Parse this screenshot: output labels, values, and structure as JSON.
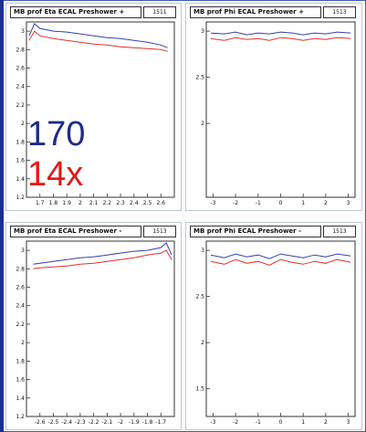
{
  "colors": {
    "series_a": "#3240b0",
    "series_b": "#e03030",
    "frame": "#333333"
  },
  "annotations": {
    "top": {
      "text": "170",
      "color": "#1f2a8a"
    },
    "bottom": {
      "text": "14x",
      "color": "#e01a1a"
    }
  },
  "chart_data": [
    {
      "type": "line",
      "title": "MB prof Eta ECAL Preshower +",
      "stat_label": "1511",
      "xlim": [
        1.6,
        2.7
      ],
      "ylim": [
        1.2,
        3.1
      ],
      "xticks": [
        "1.7",
        "1.8",
        "1.9",
        "2",
        "2.1",
        "2.2",
        "2.3",
        "2.4",
        "2.5",
        "2.6"
      ],
      "yticks": [
        "1.2",
        "1.4",
        "1.6",
        "1.8",
        "2",
        "2.2",
        "2.4",
        "2.6",
        "2.8",
        "3"
      ],
      "series": [
        {
          "x": [
            1.62,
            1.66,
            1.7,
            1.8,
            1.9,
            2.0,
            2.1,
            2.2,
            2.3,
            2.4,
            2.5,
            2.6,
            2.65
          ],
          "values": [
            2.95,
            3.08,
            3.03,
            3.0,
            2.99,
            2.97,
            2.95,
            2.93,
            2.92,
            2.9,
            2.88,
            2.85,
            2.82
          ]
        },
        {
          "x": [
            1.62,
            1.66,
            1.7,
            1.8,
            1.9,
            2.0,
            2.1,
            2.2,
            2.3,
            2.4,
            2.5,
            2.6,
            2.65
          ],
          "values": [
            2.9,
            3.0,
            2.95,
            2.92,
            2.9,
            2.88,
            2.86,
            2.85,
            2.83,
            2.82,
            2.81,
            2.8,
            2.78
          ]
        }
      ]
    },
    {
      "type": "line",
      "title": "MB prof Phi ECAL Preshower +",
      "stat_label": "1513",
      "xlim": [
        -3.3,
        3.3
      ],
      "ylim": [
        1.2,
        3.1
      ],
      "xticks": [
        "-3",
        "-2",
        "-1",
        "0",
        "1",
        "2",
        "3"
      ],
      "yticks": [
        "2",
        "2.5",
        "3"
      ],
      "series": [
        {
          "x": [
            -3.1,
            -2.5,
            -2.0,
            -1.5,
            -1.0,
            -0.5,
            0.0,
            0.5,
            1.0,
            1.5,
            2.0,
            2.5,
            3.1
          ],
          "values": [
            2.98,
            2.97,
            2.99,
            2.96,
            2.98,
            2.97,
            2.99,
            2.98,
            2.96,
            2.98,
            2.97,
            2.99,
            2.98
          ]
        },
        {
          "x": [
            -3.1,
            -2.5,
            -2.0,
            -1.5,
            -1.0,
            -0.5,
            0.0,
            0.5,
            1.0,
            1.5,
            2.0,
            2.5,
            3.1
          ],
          "values": [
            2.92,
            2.9,
            2.93,
            2.91,
            2.92,
            2.9,
            2.93,
            2.92,
            2.9,
            2.92,
            2.91,
            2.93,
            2.92
          ]
        }
      ]
    },
    {
      "type": "line",
      "title": "MB prof Eta ECAL Preshower -",
      "stat_label": "1513",
      "xlim": [
        -2.7,
        -1.6
      ],
      "ylim": [
        1.2,
        3.1
      ],
      "xticks": [
        "-2.6",
        "-2.5",
        "-2.4",
        "-2.3",
        "-2.2",
        "-2.1",
        "-2",
        "-1.9",
        "-1.8",
        "-1.7"
      ],
      "yticks": [
        "1.2",
        "1.4",
        "1.6",
        "1.8",
        "2",
        "2.2",
        "2.4",
        "2.6",
        "2.8",
        "3"
      ],
      "series": [
        {
          "x": [
            -2.65,
            -2.6,
            -2.5,
            -2.4,
            -2.3,
            -2.2,
            -2.1,
            -2.0,
            -1.9,
            -1.8,
            -1.7,
            -1.66,
            -1.62
          ],
          "values": [
            2.85,
            2.86,
            2.88,
            2.9,
            2.92,
            2.93,
            2.95,
            2.97,
            2.99,
            3.0,
            3.03,
            3.08,
            2.95
          ]
        },
        {
          "x": [
            -2.65,
            -2.6,
            -2.5,
            -2.4,
            -2.3,
            -2.2,
            -2.1,
            -2.0,
            -1.9,
            -1.8,
            -1.7,
            -1.66,
            -1.62
          ],
          "values": [
            2.8,
            2.81,
            2.82,
            2.83,
            2.85,
            2.86,
            2.88,
            2.9,
            2.92,
            2.95,
            2.97,
            3.0,
            2.9
          ]
        }
      ]
    },
    {
      "type": "line",
      "title": "MB prof Phi ECAL Preshower -",
      "stat_label": "1513",
      "xlim": [
        -3.3,
        3.3
      ],
      "ylim": [
        1.2,
        3.1
      ],
      "xticks": [
        "-3",
        "-2",
        "-1",
        "0",
        "1",
        "2",
        "3"
      ],
      "yticks": [
        "1.5",
        "2",
        "2.5",
        "3"
      ],
      "series": [
        {
          "x": [
            -3.1,
            -2.5,
            -2.0,
            -1.5,
            -1.0,
            -0.5,
            0.0,
            0.5,
            1.0,
            1.5,
            2.0,
            2.5,
            3.1
          ],
          "values": [
            2.95,
            2.92,
            2.96,
            2.93,
            2.95,
            2.91,
            2.96,
            2.94,
            2.92,
            2.95,
            2.93,
            2.96,
            2.94
          ]
        },
        {
          "x": [
            -3.1,
            -2.5,
            -2.0,
            -1.5,
            -1.0,
            -0.5,
            0.0,
            0.5,
            1.0,
            1.5,
            2.0,
            2.5,
            3.1
          ],
          "values": [
            2.88,
            2.85,
            2.9,
            2.86,
            2.88,
            2.84,
            2.9,
            2.87,
            2.85,
            2.88,
            2.86,
            2.9,
            2.87
          ]
        }
      ]
    }
  ]
}
